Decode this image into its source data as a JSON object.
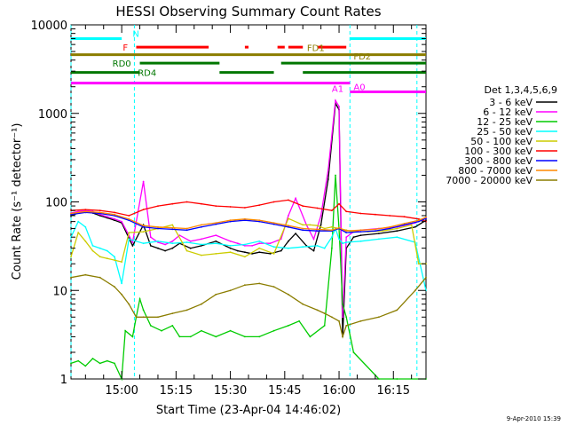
{
  "chart_data": {
    "type": "line",
    "title": "HESSI Observing Summary Count Rates",
    "xlabel": "Start Time (23-Apr-04 14:46:02)",
    "ylabel": "Count Rate (s⁻¹ detector⁻¹)",
    "y_scale": "log",
    "ylim": [
      1,
      10000
    ],
    "xlim_minutes_after_start": [
      0,
      98
    ],
    "x_tick_labels": [
      "15:00",
      "15:15",
      "15:30",
      "15:45",
      "16:00",
      "16:15"
    ],
    "x_tick_minutes": [
      14,
      29,
      44,
      59,
      74,
      89
    ],
    "y_tick_labels": [
      "1",
      "10",
      "100",
      "1000",
      "10000"
    ],
    "y_tick_values": [
      1,
      10,
      100,
      1000,
      10000
    ],
    "footer_date": "9-Apr-2010 15:39",
    "legend_header": "Det 1,3,4,5,6,9",
    "series": [
      {
        "name": "3 - 6 keV",
        "color": "#000000",
        "x": [
          0,
          2,
          4,
          6,
          8,
          10,
          12,
          14,
          17,
          20,
          22,
          24,
          26,
          28,
          30,
          33,
          36,
          40,
          44,
          46,
          48,
          50,
          52,
          55,
          58,
          60,
          62,
          65,
          67,
          69,
          71,
          73,
          74,
          75,
          76,
          78,
          80,
          85,
          90,
          95,
          98
        ],
        "y": [
          70,
          75,
          78,
          75,
          70,
          66,
          62,
          58,
          32,
          55,
          32,
          30,
          28,
          30,
          34,
          30,
          32,
          36,
          30,
          28,
          27,
          26,
          27,
          26,
          28,
          36,
          44,
          32,
          28,
          55,
          180,
          1300,
          1100,
          3,
          30,
          40,
          42,
          44,
          47,
          52,
          62
        ]
      },
      {
        "name": "6 - 12 keV",
        "color": "#ff00ff",
        "x": [
          0,
          2,
          4,
          6,
          8,
          10,
          12,
          14,
          17,
          20,
          22,
          24,
          26,
          28,
          30,
          33,
          36,
          40,
          44,
          46,
          48,
          50,
          52,
          55,
          58,
          60,
          62,
          65,
          67,
          69,
          71,
          73,
          74,
          75,
          76,
          78,
          80,
          85,
          90,
          95,
          98
        ],
        "y": [
          75,
          78,
          80,
          78,
          72,
          68,
          64,
          60,
          35,
          170,
          40,
          35,
          33,
          36,
          42,
          36,
          38,
          42,
          36,
          34,
          32,
          32,
          34,
          34,
          38,
          70,
          110,
          55,
          38,
          70,
          230,
          1400,
          1200,
          5,
          40,
          46,
          48,
          50,
          52,
          58,
          66
        ]
      },
      {
        "name": "12 - 25 keV",
        "color": "#00cc00",
        "x": [
          0,
          2,
          4,
          6,
          8,
          10,
          12,
          14,
          15,
          17,
          18,
          19,
          20,
          22,
          25,
          28,
          30,
          33,
          36,
          40,
          44,
          48,
          52,
          56,
          60,
          63,
          66,
          70,
          72,
          73,
          74,
          75,
          76,
          78,
          85,
          90,
          98
        ],
        "y": [
          1.5,
          1.6,
          1.4,
          1.7,
          1.5,
          1.6,
          1.5,
          1,
          3.5,
          3,
          5,
          8,
          6,
          4,
          3.5,
          4,
          3,
          3,
          3.5,
          3,
          3.5,
          3,
          3,
          3.5,
          4,
          4.5,
          3,
          4,
          30,
          200,
          50,
          7,
          5,
          2,
          1,
          1,
          1
        ]
      },
      {
        "name": "25 - 50 keV",
        "color": "#00ffff",
        "x": [
          0,
          2,
          4,
          6,
          8,
          10,
          12,
          14,
          16,
          20,
          24,
          28,
          32,
          36,
          40,
          44,
          48,
          52,
          56,
          60,
          64,
          68,
          70,
          72,
          73,
          74,
          75,
          76,
          80,
          85,
          90,
          95,
          98
        ],
        "y": [
          40,
          60,
          52,
          32,
          30,
          28,
          24,
          12,
          38,
          34,
          36,
          34,
          35,
          33,
          34,
          32,
          33,
          36,
          31,
          30,
          31,
          32,
          30,
          40,
          50,
          38,
          34,
          35,
          36,
          38,
          40,
          35,
          10
        ]
      },
      {
        "name": "50 - 100 keV",
        "color": "#cccc00",
        "x": [
          0,
          2,
          4,
          6,
          8,
          10,
          12,
          14,
          16,
          20,
          24,
          28,
          32,
          36,
          40,
          44,
          48,
          52,
          56,
          60,
          64,
          66,
          68,
          70,
          72,
          74,
          76,
          78,
          82,
          86,
          90,
          94,
          96,
          98
        ],
        "y": [
          24,
          45,
          36,
          28,
          24,
          23,
          22,
          21,
          45,
          46,
          50,
          55,
          28,
          25,
          26,
          27,
          24,
          30,
          26,
          65,
          55,
          55,
          54,
          50,
          52,
          50,
          48,
          46,
          46,
          47,
          50,
          55,
          20,
          20
        ]
      },
      {
        "name": "100 - 300 keV",
        "color": "#ff0000",
        "x": [
          0,
          4,
          8,
          12,
          16,
          20,
          24,
          28,
          32,
          36,
          40,
          44,
          48,
          52,
          56,
          60,
          64,
          68,
          72,
          74,
          76,
          80,
          84,
          88,
          92,
          96,
          98
        ],
        "y": [
          80,
          82,
          80,
          76,
          70,
          82,
          90,
          95,
          100,
          95,
          90,
          88,
          86,
          92,
          100,
          105,
          90,
          85,
          80,
          95,
          78,
          74,
          72,
          70,
          68,
          64,
          60
        ]
      },
      {
        "name": "300 - 800 keV",
        "color": "#0000ff",
        "x": [
          0,
          4,
          8,
          12,
          16,
          20,
          24,
          28,
          32,
          36,
          40,
          44,
          48,
          52,
          56,
          60,
          64,
          68,
          72,
          74,
          76,
          80,
          84,
          88,
          92,
          96,
          98
        ],
        "y": [
          72,
          76,
          74,
          70,
          62,
          52,
          50,
          49,
          48,
          52,
          56,
          60,
          62,
          60,
          56,
          52,
          48,
          47,
          47,
          50,
          45,
          46,
          47,
          50,
          55,
          60,
          65
        ]
      },
      {
        "name": "800 - 7000 keV",
        "color": "#ff8800",
        "x": [
          0,
          4,
          8,
          12,
          16,
          20,
          24,
          28,
          32,
          36,
          40,
          44,
          48,
          52,
          56,
          60,
          64,
          68,
          72,
          74,
          76,
          80,
          84,
          88,
          92,
          96,
          98
        ],
        "y": [
          74,
          78,
          76,
          72,
          64,
          54,
          52,
          51,
          50,
          55,
          58,
          62,
          64,
          62,
          58,
          54,
          50,
          49,
          48,
          51,
          47,
          48,
          49,
          52,
          57,
          62,
          67
        ]
      },
      {
        "name": "7000 - 20000 keV",
        "color": "#8b7d00",
        "x": [
          0,
          4,
          8,
          12,
          14,
          16,
          18,
          20,
          24,
          28,
          32,
          36,
          40,
          44,
          48,
          52,
          56,
          60,
          64,
          68,
          70,
          72,
          74,
          75,
          76,
          80,
          85,
          90,
          95,
          98
        ],
        "y": [
          14,
          15,
          14,
          11,
          9,
          7,
          5,
          5,
          5,
          5.5,
          6,
          7,
          9,
          10,
          11.5,
          12,
          11,
          9,
          7,
          6,
          5.5,
          5,
          4.5,
          3,
          4,
          4.5,
          5,
          6,
          10,
          14
        ]
      }
    ],
    "flag_bars": [
      {
        "label": "N",
        "color": "#00ffff",
        "level": 7000,
        "segments": [
          [
            0,
            14
          ],
          [
            77,
            98
          ]
        ]
      },
      {
        "label": "F",
        "color": "#ff0000",
        "level": 5600,
        "segments": [
          [
            18,
            38
          ],
          [
            48,
            49
          ],
          [
            57,
            59
          ],
          [
            60,
            64
          ],
          [
            68,
            76
          ]
        ]
      },
      {
        "label": "FD1",
        "color": "#8b7d00",
        "level": 4600,
        "segments": [
          [
            0,
            98
          ]
        ]
      },
      {
        "label": "RD0",
        "color": "#007700",
        "level": 3700,
        "segments": [
          [
            19,
            41
          ],
          [
            58,
            98
          ]
        ]
      },
      {
        "label": "FD2",
        "color": "#8b7d00",
        "level": 3700,
        "segments": []
      },
      {
        "label": "RD4",
        "color": "#007700",
        "level": 2900,
        "segments": [
          [
            0,
            19
          ],
          [
            41,
            56
          ],
          [
            64,
            98
          ]
        ]
      },
      {
        "label": "A1",
        "color": "#ff00ff",
        "level": 2200,
        "segments": [
          [
            0,
            77
          ]
        ]
      },
      {
        "label": "A0",
        "color": "#ff00ff",
        "level": 1750,
        "segments": [
          [
            77,
            98
          ]
        ]
      }
    ],
    "vertical_markers_minutes": [
      0,
      17.5,
      77,
      95.5
    ]
  }
}
